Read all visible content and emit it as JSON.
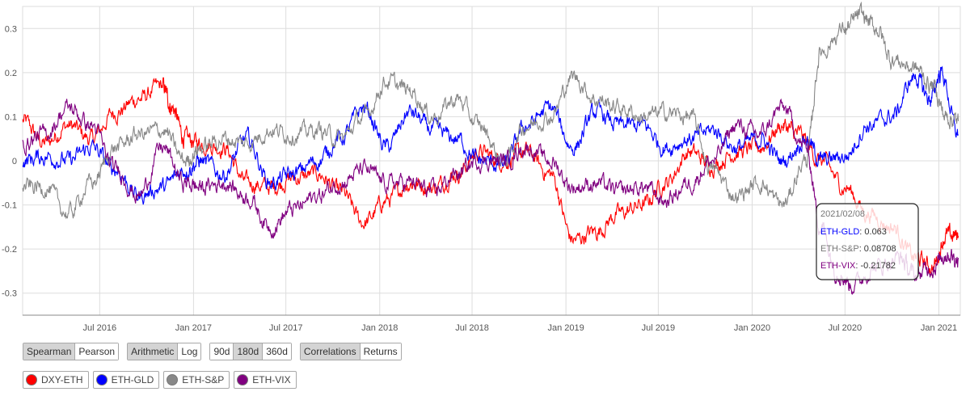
{
  "chart_data": {
    "type": "line",
    "x_start": "2016-02-01",
    "x_end": "2021-02-08",
    "xlim": [
      "2016-02-01",
      "2021-02-12"
    ],
    "ylim": [
      -0.35,
      0.35
    ],
    "y_ticks": [
      0.3,
      0.2,
      0.1,
      0,
      -0.1,
      -0.2,
      -0.3
    ],
    "x_ticks": [
      {
        "label": "Jul 2016",
        "date": "2016-07-01"
      },
      {
        "label": "Jan 2017",
        "date": "2017-01-01"
      },
      {
        "label": "Jul 2017",
        "date": "2017-07-01"
      },
      {
        "label": "Jan 2018",
        "date": "2018-01-01"
      },
      {
        "label": "Jul 2018",
        "date": "2018-07-01"
      },
      {
        "label": "Jan 2019",
        "date": "2019-01-01"
      },
      {
        "label": "Jul 2019",
        "date": "2019-07-01"
      },
      {
        "label": "Jan 2020",
        "date": "2020-01-01"
      },
      {
        "label": "Jul 2020",
        "date": "2020-07-01"
      },
      {
        "label": "Jan 2021",
        "date": "2021-01-01"
      }
    ],
    "grid": true,
    "series": [
      {
        "name": "DXY-ETH",
        "color": "#ff0000",
        "points": [
          [
            "2016-02-01",
            0.09
          ],
          [
            "2016-03-15",
            0.04
          ],
          [
            "2016-05-01",
            0.08
          ],
          [
            "2016-06-15",
            0.05
          ],
          [
            "2016-08-01",
            0.11
          ],
          [
            "2016-09-15",
            0.14
          ],
          [
            "2016-11-01",
            0.17
          ],
          [
            "2016-11-20",
            0.12
          ],
          [
            "2016-12-15",
            0.05
          ],
          [
            "2017-01-15",
            0.04
          ],
          [
            "2017-03-01",
            0.03
          ],
          [
            "2017-04-15",
            -0.05
          ],
          [
            "2017-06-01",
            -0.06
          ],
          [
            "2017-07-15",
            -0.04
          ],
          [
            "2017-09-01",
            -0.03
          ],
          [
            "2017-10-15",
            -0.07
          ],
          [
            "2017-12-01",
            -0.14
          ],
          [
            "2018-01-15",
            -0.09
          ],
          [
            "2018-03-01",
            -0.05
          ],
          [
            "2018-04-15",
            -0.06
          ],
          [
            "2018-06-01",
            -0.03
          ],
          [
            "2018-07-15",
            0.02
          ],
          [
            "2018-09-01",
            0.0
          ],
          [
            "2018-10-15",
            0.02
          ],
          [
            "2018-12-01",
            -0.03
          ],
          [
            "2019-01-15",
            -0.18
          ],
          [
            "2019-03-01",
            -0.16
          ],
          [
            "2019-04-15",
            -0.12
          ],
          [
            "2019-06-01",
            -0.1
          ],
          [
            "2019-07-15",
            -0.05
          ],
          [
            "2019-09-01",
            0.02
          ],
          [
            "2019-10-15",
            -0.01
          ],
          [
            "2019-12-01",
            0.02
          ],
          [
            "2020-01-15",
            0.03
          ],
          [
            "2020-03-01",
            0.08
          ],
          [
            "2020-04-01",
            0.06
          ],
          [
            "2020-05-15",
            0.0
          ],
          [
            "2020-07-01",
            -0.06
          ],
          [
            "2020-08-15",
            -0.12
          ],
          [
            "2020-10-01",
            -0.15
          ],
          [
            "2020-11-15",
            -0.22
          ],
          [
            "2020-12-20",
            -0.24
          ],
          [
            "2021-01-15",
            -0.17
          ],
          [
            "2021-02-08",
            -0.17
          ]
        ]
      },
      {
        "name": "ETH-GLD",
        "color": "#0000ff",
        "points": [
          [
            "2016-02-01",
            0.0
          ],
          [
            "2016-03-15",
            0.01
          ],
          [
            "2016-05-01",
            0.0
          ],
          [
            "2016-06-15",
            0.03
          ],
          [
            "2016-08-01",
            -0.02
          ],
          [
            "2016-09-15",
            -0.08
          ],
          [
            "2016-11-01",
            -0.06
          ],
          [
            "2016-12-15",
            -0.02
          ],
          [
            "2017-01-15",
            0.0
          ],
          [
            "2017-03-01",
            -0.03
          ],
          [
            "2017-04-15",
            0.05
          ],
          [
            "2017-06-01",
            -0.05
          ],
          [
            "2017-07-15",
            -0.03
          ],
          [
            "2017-09-01",
            0.0
          ],
          [
            "2017-10-15",
            0.05
          ],
          [
            "2017-12-01",
            0.12
          ],
          [
            "2018-01-15",
            0.03
          ],
          [
            "2018-03-01",
            0.11
          ],
          [
            "2018-04-15",
            0.07
          ],
          [
            "2018-06-01",
            0.05
          ],
          [
            "2018-07-15",
            0.0
          ],
          [
            "2018-09-01",
            -0.01
          ],
          [
            "2018-10-15",
            0.08
          ],
          [
            "2018-12-01",
            0.12
          ],
          [
            "2019-01-15",
            0.03
          ],
          [
            "2019-03-01",
            0.11
          ],
          [
            "2019-04-15",
            0.08
          ],
          [
            "2019-06-01",
            0.08
          ],
          [
            "2019-07-15",
            0.03
          ],
          [
            "2019-09-01",
            0.05
          ],
          [
            "2019-10-15",
            0.07
          ],
          [
            "2019-12-01",
            0.03
          ],
          [
            "2020-01-15",
            0.05
          ],
          [
            "2020-03-01",
            0.0
          ],
          [
            "2020-04-15",
            0.05
          ],
          [
            "2020-05-15",
            0.0
          ],
          [
            "2020-07-01",
            0.01
          ],
          [
            "2020-08-15",
            0.08
          ],
          [
            "2020-10-01",
            0.1
          ],
          [
            "2020-11-15",
            0.19
          ],
          [
            "2020-12-15",
            0.14
          ],
          [
            "2021-01-05",
            0.2
          ],
          [
            "2021-02-08",
            0.06
          ]
        ]
      },
      {
        "name": "ETH-S&P",
        "color": "#888888",
        "points": [
          [
            "2016-02-01",
            -0.06
          ],
          [
            "2016-03-15",
            -0.06
          ],
          [
            "2016-05-01",
            -0.12
          ],
          [
            "2016-06-15",
            -0.05
          ],
          [
            "2016-08-01",
            0.03
          ],
          [
            "2016-09-15",
            0.06
          ],
          [
            "2016-11-01",
            0.07
          ],
          [
            "2016-12-15",
            0.0
          ],
          [
            "2017-01-15",
            0.03
          ],
          [
            "2017-03-01",
            0.05
          ],
          [
            "2017-04-15",
            0.04
          ],
          [
            "2017-06-01",
            0.07
          ],
          [
            "2017-07-15",
            0.06
          ],
          [
            "2017-09-01",
            0.07
          ],
          [
            "2017-10-15",
            0.05
          ],
          [
            "2017-12-01",
            0.1
          ],
          [
            "2018-01-15",
            0.18
          ],
          [
            "2018-03-01",
            0.16
          ],
          [
            "2018-04-15",
            0.1
          ],
          [
            "2018-06-01",
            0.14
          ],
          [
            "2018-07-15",
            0.08
          ],
          [
            "2018-09-01",
            0.0
          ],
          [
            "2018-10-15",
            0.08
          ],
          [
            "2018-12-01",
            0.1
          ],
          [
            "2019-01-15",
            0.19
          ],
          [
            "2019-03-01",
            0.14
          ],
          [
            "2019-04-15",
            0.12
          ],
          [
            "2019-06-01",
            0.1
          ],
          [
            "2019-07-15",
            0.11
          ],
          [
            "2019-09-01",
            0.1
          ],
          [
            "2019-10-15",
            -0.02
          ],
          [
            "2019-12-01",
            -0.08
          ],
          [
            "2020-01-15",
            -0.05
          ],
          [
            "2020-03-01",
            -0.1
          ],
          [
            "2020-04-15",
            0.0
          ],
          [
            "2020-05-15",
            0.25
          ],
          [
            "2020-07-01",
            0.3
          ],
          [
            "2020-08-01",
            0.33
          ],
          [
            "2020-09-01",
            0.3
          ],
          [
            "2020-10-01",
            0.23
          ],
          [
            "2020-11-15",
            0.21
          ],
          [
            "2020-12-20",
            0.17
          ],
          [
            "2021-01-15",
            0.1
          ],
          [
            "2021-02-08",
            0.09
          ]
        ]
      },
      {
        "name": "ETH-VIX",
        "color": "#800080",
        "points": [
          [
            "2016-02-01",
            0.04
          ],
          [
            "2016-03-15",
            0.06
          ],
          [
            "2016-05-01",
            0.12
          ],
          [
            "2016-06-15",
            0.08
          ],
          [
            "2016-08-01",
            -0.02
          ],
          [
            "2016-09-15",
            -0.08
          ],
          [
            "2016-11-01",
            0.03
          ],
          [
            "2016-12-15",
            -0.05
          ],
          [
            "2017-01-15",
            -0.06
          ],
          [
            "2017-03-01",
            -0.05
          ],
          [
            "2017-04-15",
            -0.08
          ],
          [
            "2017-06-01",
            -0.15
          ],
          [
            "2017-07-15",
            -0.11
          ],
          [
            "2017-09-01",
            -0.08
          ],
          [
            "2017-10-15",
            -0.05
          ],
          [
            "2017-12-01",
            -0.02
          ],
          [
            "2018-01-15",
            -0.05
          ],
          [
            "2018-03-01",
            -0.05
          ],
          [
            "2018-04-15",
            -0.07
          ],
          [
            "2018-06-01",
            -0.03
          ],
          [
            "2018-07-15",
            0.0
          ],
          [
            "2018-09-01",
            0.0
          ],
          [
            "2018-10-15",
            0.03
          ],
          [
            "2018-12-01",
            0.0
          ],
          [
            "2019-01-15",
            -0.06
          ],
          [
            "2019-03-01",
            -0.05
          ],
          [
            "2019-04-15",
            -0.07
          ],
          [
            "2019-06-01",
            -0.06
          ],
          [
            "2019-07-15",
            -0.09
          ],
          [
            "2019-09-01",
            -0.05
          ],
          [
            "2019-10-15",
            0.0
          ],
          [
            "2019-12-01",
            0.08
          ],
          [
            "2020-01-15",
            0.06
          ],
          [
            "2020-03-01",
            0.12
          ],
          [
            "2020-04-15",
            0.03
          ],
          [
            "2020-05-15",
            -0.15
          ],
          [
            "2020-06-15",
            -0.25
          ],
          [
            "2020-07-15",
            -0.28
          ],
          [
            "2020-09-01",
            -0.24
          ],
          [
            "2020-10-15",
            -0.22
          ],
          [
            "2020-11-15",
            -0.26
          ],
          [
            "2020-12-20",
            -0.24
          ],
          [
            "2021-01-15",
            -0.21
          ],
          [
            "2021-02-08",
            -0.22
          ]
        ]
      }
    ]
  },
  "tooltip": {
    "date": "2021/02/08",
    "rows": [
      {
        "label": "ETH-GLD",
        "value": ": 0.063",
        "color": "#0000ff"
      },
      {
        "label": "ETH-S&P",
        "value": ": 0.08708",
        "color": "#888888"
      },
      {
        "label": "ETH-VIX",
        "value": ": -0.21782",
        "color": "#800080"
      }
    ]
  },
  "controls": {
    "method": {
      "spearman": "Spearman",
      "pearson": "Pearson"
    },
    "scale": {
      "arithmetic": "Arithmetic",
      "log": "Log"
    },
    "window": {
      "d90": "90d",
      "d180": "180d",
      "d360": "360d"
    },
    "mode": {
      "correlations": "Correlations",
      "returns": "Returns"
    }
  },
  "legend": [
    {
      "label": "DXY-ETH",
      "color": "#ff0000"
    },
    {
      "label": "ETH-GLD",
      "color": "#0000ff"
    },
    {
      "label": "ETH-S&P",
      "color": "#888888"
    },
    {
      "label": "ETH-VIX",
      "color": "#800080"
    }
  ]
}
